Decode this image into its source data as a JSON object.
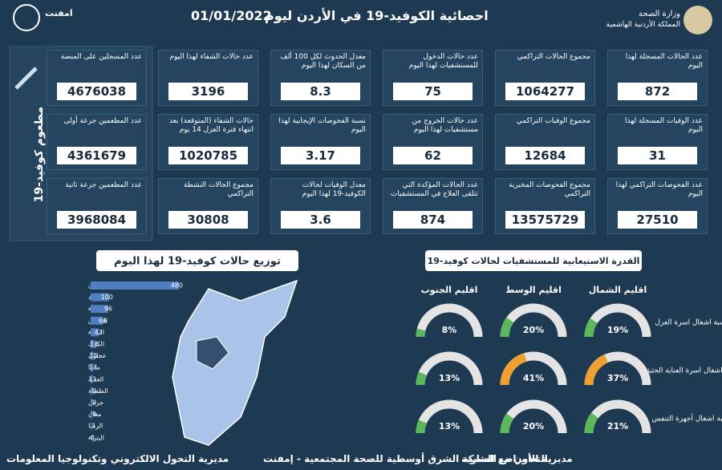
{
  "header": {
    "title": "احصائية الكوفيد-19 في الأردن ليوم",
    "date": "01/01/2022",
    "ministry": "وزارة الصحة",
    "kingdom": "المملكة الأردنية الهاشمية",
    "logo_name": "امفنت"
  },
  "stats": [
    {
      "label": "عدد الحالات المسجلة لهذا اليوم",
      "value": 872
    },
    {
      "label": "مجموع الحالات التراكمي",
      "value": 1064277
    },
    {
      "label": "عدد حالات الدخول للمستشفيات لهذا اليوم",
      "value": 75
    },
    {
      "label": "معدل الحدوث لكل 100 ألف من السكان لهذا اليوم",
      "value": 8.3
    },
    {
      "label": "عدد حالات الشفاء لهذا اليوم",
      "value": 3196
    },
    {
      "label": "عدد الوفيات المسجلة لهذا اليوم",
      "value": 31
    },
    {
      "label": "مجموع الوفيات التراكمي",
      "value": 12684
    },
    {
      "label": "عدد حالات الخروج من مستشفيات لهذا اليوم",
      "value": 62
    },
    {
      "label": "نسبة الفحوصات الإيجابية لهذا اليوم",
      "value": 3.17
    },
    {
      "label": "حالات الشفاء (المتوقعة) بعد انتهاء فترة العزل 14 يوم",
      "value": 1020785
    },
    {
      "label": "عدد الفحوصات التراكمي لهذا اليوم",
      "value": 27510
    },
    {
      "label": "مجموع الفحوصات المخبرية التراكمي",
      "value": 13575729
    },
    {
      "label": "عدد الحالات المؤكدة التي تتلقى العلاج في المستشفيات",
      "value": 874
    },
    {
      "label": "معدل الوفيات لحالات الكوفيد-19 لهذا اليوم",
      "value": 3.6
    },
    {
      "label": "مجموع الحالات النشطة التراكمي",
      "value": 30808
    }
  ],
  "vaccination": {
    "title": "مطعوم كوفيد-19",
    "items": [
      {
        "label": "عدد المسجلين على المنصة",
        "value": 4676038
      },
      {
        "label": "عدد المطعمين جرعة أولى",
        "value": 4361679
      },
      {
        "label": "عدد المطعمين جرعة ثانية",
        "value": 3968084
      }
    ]
  },
  "chart_data": [
    {
      "type": "bar",
      "title": "توزيع حالات كوفيد-19 لهذا اليوم",
      "color": "#4f7fc0",
      "categories": [
        "عمان",
        "اربد",
        "الزرقاء",
        "المفرق",
        "البلقاء",
        "الكرك",
        "عجلون",
        "مادبا",
        "العقبة",
        "الطفيلة",
        "جرش",
        "معان",
        "الرمثا",
        "البتراء"
      ],
      "values": [
        480,
        100,
        96,
        66,
        43,
        18,
        15,
        13,
        11,
        9,
        9,
        9,
        3,
        0
      ]
    },
    {
      "type": "gauge",
      "title": "القدرة الاستيعابية للمستشفيات لحالات كوفيد-19",
      "regions": [
        "اقليم الشمال",
        "اقليم الوسط",
        "اقليم الجنوب"
      ],
      "ylim": [
        0,
        100
      ],
      "series": [
        {
          "name": "نسبة اشغال اسرة العزل",
          "values": [
            19,
            20,
            8
          ],
          "value_labels": [
            "19%",
            "20%",
            "8%"
          ],
          "colors": [
            "#5cb85c",
            "#5cb85c",
            "#5cb85c"
          ]
        },
        {
          "name": "نسبة اشغال اسرة العناية الحثيثة",
          "values": [
            37,
            41,
            13
          ],
          "value_labels": [
            "37%",
            "41%",
            "13%"
          ],
          "colors": [
            "#f0a030",
            "#f0a030",
            "#5cb85c"
          ]
        },
        {
          "name": "نسبة اشغال أجهزة التنفس",
          "values": [
            21,
            20,
            13
          ],
          "value_labels": [
            "21%",
            "20%",
            "13%"
          ],
          "colors": [
            "#5cb85c",
            "#5cb85c",
            "#5cb85c"
          ]
        }
      ]
    }
  ],
  "footer": {
    "right": "مديرية الأمراض السارية",
    "center": "بالتعاون مع الشبكة الشرق أوسطية للصحة المجتمعية - إمفنت",
    "left": "مديرية التحول الالكتروني وتكنولوجيا المعلومات"
  }
}
